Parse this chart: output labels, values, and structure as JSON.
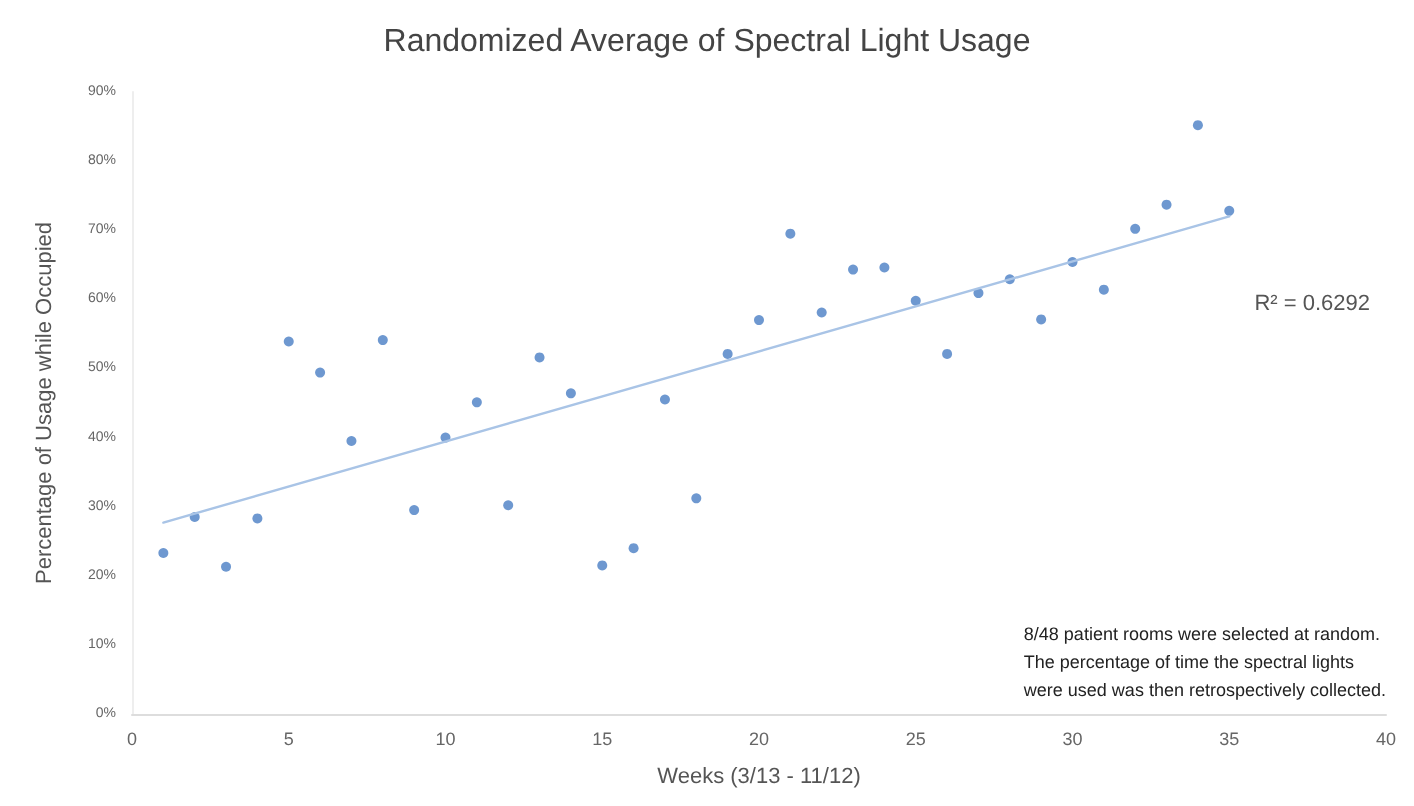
{
  "chart_data": {
    "type": "scatter",
    "title": "Randomized Average of Spectral Light Usage",
    "xlabel": "Weeks (3/13 - 11/12)",
    "ylabel": "Percentage of Usage while Occupied",
    "x": [
      1,
      2,
      3,
      4,
      5,
      6,
      7,
      8,
      9,
      10,
      11,
      12,
      13,
      14,
      15,
      16,
      17,
      18,
      19,
      20,
      21,
      22,
      23,
      24,
      25,
      26,
      27,
      28,
      29,
      30,
      31,
      32,
      33,
      34,
      35
    ],
    "series": [
      {
        "color": "#4a7ec4",
        "marker": "circle",
        "values": [
          23.3,
          28.5,
          21.3,
          28.3,
          53.9,
          49.4,
          39.5,
          54.1,
          29.5,
          40.0,
          45.1,
          30.2,
          51.6,
          46.4,
          21.5,
          24.0,
          45.5,
          31.2,
          52.1,
          57.0,
          69.5,
          58.1,
          64.3,
          64.6,
          59.8,
          52.1,
          60.9,
          62.9,
          57.1,
          65.4,
          61.4,
          70.2,
          73.7,
          85.2,
          72.8
        ]
      },
      {
        "type": "line",
        "color": "#a9c4e6",
        "x": [
          1,
          35
        ],
        "values": [
          27.7,
          72.0
        ]
      }
    ],
    "xlim": [
      0,
      40
    ],
    "xticks": [
      0,
      5,
      10,
      15,
      20,
      25,
      30,
      35,
      40
    ],
    "ylim": [
      0,
      90
    ],
    "yticks": [
      {
        "value": 0,
        "label": "0%"
      },
      {
        "value": 10,
        "label": "10%"
      },
      {
        "value": 20,
        "label": "20%"
      },
      {
        "value": 30,
        "label": "30%"
      },
      {
        "value": 40,
        "label": "40%"
      },
      {
        "value": 50,
        "label": "50%"
      },
      {
        "value": 60,
        "label": "60%"
      },
      {
        "value": 70,
        "label": "70%"
      },
      {
        "value": 80,
        "label": "80%"
      },
      {
        "value": 90,
        "label": "90%"
      }
    ],
    "annotations": [
      "R² = 0.6292",
      "8/48 patient rooms were selected at random.\nThe percentage of time the spectral lights\nwere used was then retrospectively collected."
    ],
    "grid": false
  }
}
